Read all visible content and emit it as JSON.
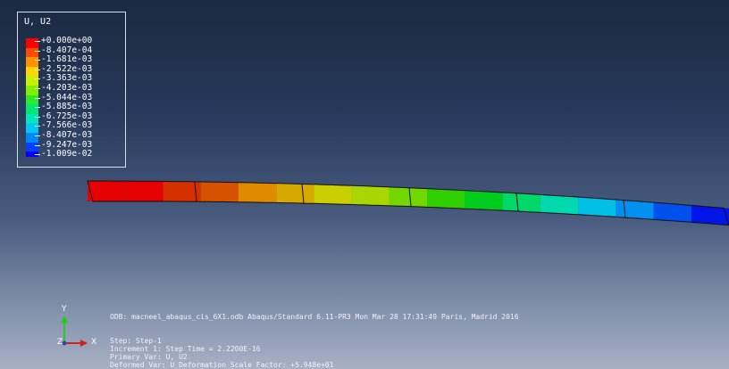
{
  "legend": {
    "title": "U, U2",
    "entries": [
      {
        "label": "+0.000e+00",
        "color": "#ff0000"
      },
      {
        "label": "-8.407e-04",
        "color": "#ff4a00"
      },
      {
        "label": "-1.681e-03",
        "color": "#ff9100"
      },
      {
        "label": "-2.522e-03",
        "color": "#ffd400"
      },
      {
        "label": "-3.363e-03",
        "color": "#c8f000"
      },
      {
        "label": "-4.203e-03",
        "color": "#7ff000"
      },
      {
        "label": "-5.044e-03",
        "color": "#2ee82e"
      },
      {
        "label": "-5.885e-03",
        "color": "#00e874"
      },
      {
        "label": "-6.725e-03",
        "color": "#00e8b8"
      },
      {
        "label": "-7.566e-03",
        "color": "#00c8f0"
      },
      {
        "label": "-8.407e-03",
        "color": "#0088ff"
      },
      {
        "label": "-9.247e-03",
        "color": "#0040ff"
      },
      {
        "label": "-1.009e-02",
        "color": "#0000ff"
      }
    ]
  },
  "beam": {
    "segment_colors": [
      "#e60000",
      "#e60000",
      "#d63000",
      "#d65200",
      "#e08a00",
      "#d6a800",
      "#c9cf00",
      "#a8d600",
      "#72d600",
      "#30d000",
      "#00cc20",
      "#00d86a",
      "#00d8b0",
      "#00c0e8",
      "#0090f0",
      "#0050ee",
      "#0016e8"
    ]
  },
  "info": {
    "odb": "ODB: macneel_abaqus_cis_6X1.odb    Abaqus/Standard 6.11-PR3    Mon Mar 28 17:31:49 Paris, Madrid 2016",
    "step": "Step: Step-1",
    "increment": "Increment     1: Step Time =   2.2200E-16",
    "primary": "Primary Var: U, U2",
    "deformed": "Deformed Var: U   Deformation Scale Factor: +5.948e+01"
  },
  "triad": {
    "x_label": "X",
    "y_label": "Y",
    "z_label": "Z"
  }
}
